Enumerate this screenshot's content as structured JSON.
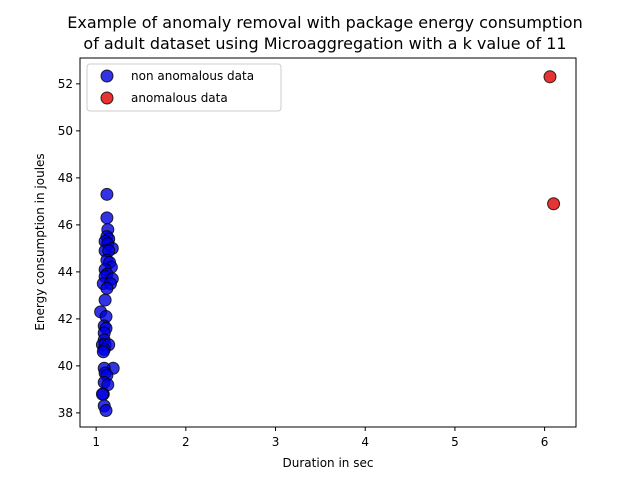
{
  "chart_data": {
    "type": "scatter",
    "title_lines": [
      "Example of anomaly removal with package energy consumption",
      "of adult dataset using Microaggregation with a k value of 11"
    ],
    "xlabel": "Duration in sec",
    "ylabel": "Energy consumption in joules",
    "xlim": [
      0.82,
      6.35
    ],
    "ylim": [
      37.4,
      53.1
    ],
    "xticks": [
      1,
      2,
      3,
      4,
      5,
      6
    ],
    "yticks": [
      38,
      40,
      42,
      44,
      46,
      48,
      50,
      52
    ],
    "grid": false,
    "legend_position": "upper left",
    "series": [
      {
        "name": "non anomalous data",
        "color": "#0000e0",
        "points": [
          [
            1.12,
            47.3
          ],
          [
            1.12,
            46.3
          ],
          [
            1.13,
            45.8
          ],
          [
            1.12,
            45.5
          ],
          [
            1.14,
            45.4
          ],
          [
            1.1,
            45.3
          ],
          [
            1.13,
            45.2
          ],
          [
            1.18,
            45.0
          ],
          [
            1.1,
            44.9
          ],
          [
            1.14,
            44.9
          ],
          [
            1.12,
            44.5
          ],
          [
            1.15,
            44.4
          ],
          [
            1.17,
            44.2
          ],
          [
            1.1,
            44.1
          ],
          [
            1.12,
            43.9
          ],
          [
            1.1,
            43.8
          ],
          [
            1.18,
            43.7
          ],
          [
            1.08,
            43.5
          ],
          [
            1.16,
            43.5
          ],
          [
            1.12,
            43.3
          ],
          [
            1.1,
            42.8
          ],
          [
            1.05,
            42.3
          ],
          [
            1.11,
            42.1
          ],
          [
            1.09,
            41.7
          ],
          [
            1.11,
            41.6
          ],
          [
            1.09,
            41.4
          ],
          [
            1.09,
            41.1
          ],
          [
            1.07,
            40.9
          ],
          [
            1.1,
            40.9
          ],
          [
            1.14,
            40.9
          ],
          [
            1.09,
            40.7
          ],
          [
            1.08,
            40.6
          ],
          [
            1.19,
            39.9
          ],
          [
            1.09,
            39.9
          ],
          [
            1.1,
            39.7
          ],
          [
            1.12,
            39.6
          ],
          [
            1.09,
            39.3
          ],
          [
            1.13,
            39.2
          ],
          [
            1.08,
            38.8
          ],
          [
            1.07,
            38.8
          ],
          [
            1.09,
            38.3
          ],
          [
            1.11,
            38.1
          ]
        ]
      },
      {
        "name": "anomalous data",
        "color": "#e00000",
        "points": [
          [
            6.06,
            52.3
          ],
          [
            6.1,
            46.9
          ]
        ]
      }
    ]
  }
}
